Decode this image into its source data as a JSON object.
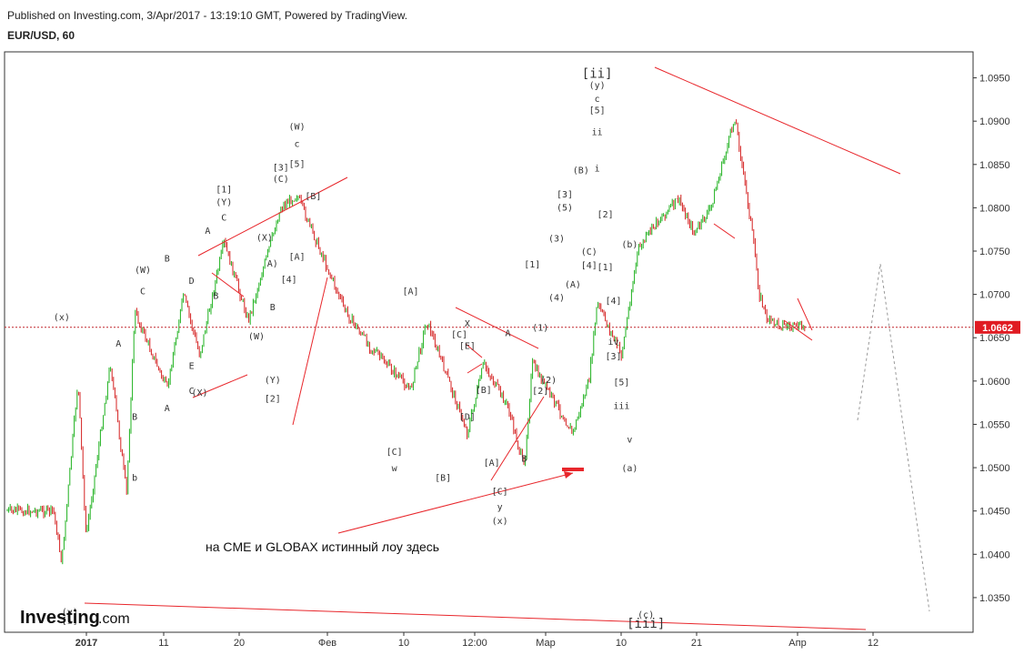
{
  "header": {
    "published": "Published on Investing.com, 3/Apr/2017 - 13:19:10 GMT, Powered by TradingView.",
    "symbol": "EUR/USD, 60"
  },
  "logo": {
    "main": "Investing",
    "suffix": ".com"
  },
  "colors": {
    "up": "#1db11d",
    "down": "#d42020",
    "line": "#e8262b",
    "price_badge": "#e01b22",
    "grid": "#cccccc"
  },
  "price": {
    "current": "1.0662",
    "current_value": 1.0662
  },
  "note": "на CME и GLOBAX истинный лоу здесь",
  "chart_data": {
    "type": "candlestick",
    "symbol": "EUR/USD",
    "timeframe": "60",
    "ylim": [
      1.031,
      1.098
    ],
    "y_ticks": [
      "1.0950",
      "1.0900",
      "1.0850",
      "1.0800",
      "1.0750",
      "1.0700",
      "1.0650",
      "1.0600",
      "1.0550",
      "1.0500",
      "1.0450",
      "1.0400",
      "1.0350"
    ],
    "x_ticks": [
      "2017",
      "11",
      "20",
      "Фев",
      "10",
      "12:00",
      "Мар",
      "10",
      "21",
      "Апр",
      "12"
    ],
    "price_path": [
      [
        "2017-01-02",
        1.045
      ],
      [
        "2017-01-03",
        1.039
      ],
      [
        "2017-01-05",
        1.06
      ],
      [
        "2017-01-06",
        1.042
      ],
      [
        "2017-01-09",
        1.062
      ],
      [
        "2017-01-11",
        1.047
      ],
      [
        "2017-01-12",
        1.068
      ],
      [
        "2017-01-16",
        1.059
      ],
      [
        "2017-01-18",
        1.07
      ],
      [
        "2017-01-20",
        1.063
      ],
      [
        "2017-01-23",
        1.076
      ],
      [
        "2017-01-26",
        1.067
      ],
      [
        "2017-01-30",
        1.08
      ],
      [
        "2017-02-01",
        1.0815
      ],
      [
        "2017-02-07",
        1.068
      ],
      [
        "2017-02-10",
        1.064
      ],
      [
        "2017-02-15",
        1.059
      ],
      [
        "2017-02-17",
        1.067
      ],
      [
        "2017-02-22",
        1.054
      ],
      [
        "2017-02-24",
        1.062
      ],
      [
        "2017-02-27",
        1.057
      ],
      [
        "2017-03-01",
        1.05
      ],
      [
        "2017-03-02",
        1.062
      ],
      [
        "2017-03-07",
        1.054
      ],
      [
        "2017-03-09",
        1.06
      ],
      [
        "2017-03-10",
        1.069
      ],
      [
        "2017-03-13",
        1.063
      ],
      [
        "2017-03-15",
        1.075
      ],
      [
        "2017-03-17",
        1.078
      ],
      [
        "2017-03-20",
        1.081
      ],
      [
        "2017-03-22",
        1.077
      ],
      [
        "2017-03-24",
        1.08
      ],
      [
        "2017-03-27",
        1.0905
      ],
      [
        "2017-03-28",
        1.084
      ],
      [
        "2017-03-29",
        1.078
      ],
      [
        "2017-03-30",
        1.07
      ],
      [
        "2017-03-31",
        1.067
      ],
      [
        "2017-04-03",
        1.0662
      ]
    ],
    "wave_labels": [
      {
        "t": "(x)",
        "d": "2017-01-03",
        "p": 1.067
      },
      {
        "t": "b",
        "d": "2017-01-12",
        "p": 1.0485
      },
      {
        "t": "A",
        "d": "2017-01-10",
        "p": 1.064
      },
      {
        "t": "B",
        "d": "2017-01-12",
        "p": 1.0555
      },
      {
        "t": "(W)",
        "d": "2017-01-13",
        "p": 1.0725
      },
      {
        "t": "C",
        "d": "2017-01-13",
        "p": 1.07
      },
      {
        "t": "A",
        "d": "2017-01-16",
        "p": 1.0565
      },
      {
        "t": "B",
        "d": "2017-01-16",
        "p": 1.0738
      },
      {
        "t": "C",
        "d": "2017-01-19",
        "p": 1.0585
      },
      {
        "t": "D",
        "d": "2017-01-19",
        "p": 1.0712
      },
      {
        "t": "E",
        "d": "2017-01-19",
        "p": 1.0614
      },
      {
        "t": "(X)",
        "d": "2017-01-20",
        "p": 1.0583
      },
      {
        "t": "A",
        "d": "2017-01-21",
        "p": 1.077
      },
      {
        "t": "B",
        "d": "2017-01-22",
        "p": 1.0695
      },
      {
        "t": "C",
        "d": "2017-01-23",
        "p": 1.0785
      },
      {
        "t": "(Y)",
        "d": "2017-01-23",
        "p": 1.0803
      },
      {
        "t": "[1]",
        "d": "2017-01-23",
        "p": 1.0818
      },
      {
        "t": "(W)",
        "d": "2017-01-27",
        "p": 1.0648
      },
      {
        "t": "(X)",
        "d": "2017-01-28",
        "p": 1.0762
      },
      {
        "t": "A)",
        "d": "2017-01-29",
        "p": 1.0732
      },
      {
        "t": "B",
        "d": "2017-01-29",
        "p": 1.0682
      },
      {
        "t": "(Y)",
        "d": "2017-01-29",
        "p": 1.0598
      },
      {
        "t": "[2]",
        "d": "2017-01-29",
        "p": 1.0576
      },
      {
        "t": "[3]",
        "d": "2017-01-30",
        "p": 1.0843
      },
      {
        "t": "(C)",
        "d": "2017-01-30",
        "p": 1.083
      },
      {
        "t": "(W)",
        "d": "2017-02-01",
        "p": 1.089
      },
      {
        "t": "c",
        "d": "2017-02-01",
        "p": 1.087
      },
      {
        "t": "[5]",
        "d": "2017-02-01",
        "p": 1.0847
      },
      {
        "t": "[A]",
        "d": "2017-02-01",
        "p": 1.074
      },
      {
        "t": "[4]",
        "d": "2017-01-31",
        "p": 1.0714
      },
      {
        "t": "[B]",
        "d": "2017-02-03",
        "p": 1.081
      },
      {
        "t": "[A]",
        "d": "2017-02-15",
        "p": 1.07
      },
      {
        "t": "[C]",
        "d": "2017-02-13",
        "p": 1.0515
      },
      {
        "t": "w",
        "d": "2017-02-13",
        "p": 1.0496
      },
      {
        "t": "[C]",
        "d": "2017-02-21",
        "p": 1.065
      },
      {
        "t": "X",
        "d": "2017-02-22",
        "p": 1.0663
      },
      {
        "t": "[E]",
        "d": "2017-02-22",
        "p": 1.0637
      },
      {
        "t": "[B]",
        "d": "2017-02-24",
        "p": 1.0586
      },
      {
        "t": "[D]",
        "d": "2017-02-22",
        "p": 1.0555
      },
      {
        "t": "[B]",
        "d": "2017-02-19",
        "p": 1.0485
      },
      {
        "t": "[A]",
        "d": "2017-02-25",
        "p": 1.0502
      },
      {
        "t": "[C]",
        "d": "2017-02-26",
        "p": 1.0469
      },
      {
        "t": "y",
        "d": "2017-02-26",
        "p": 1.0451
      },
      {
        "t": "(x)",
        "d": "2017-02-26",
        "p": 1.0435
      },
      {
        "t": "A",
        "d": "2017-02-27",
        "p": 1.0652
      },
      {
        "t": "B",
        "d": "2017-03-01",
        "p": 1.0507
      },
      {
        "t": "[1]",
        "d": "2017-03-02",
        "p": 1.0731
      },
      {
        "t": "(1)",
        "d": "2017-03-03",
        "p": 1.0658
      },
      {
        "t": "(2)",
        "d": "2017-03-04",
        "p": 1.0598
      },
      {
        "t": "[2]",
        "d": "2017-03-03",
        "p": 1.0585
      },
      {
        "t": "(3)",
        "d": "2017-03-05",
        "p": 1.0761
      },
      {
        "t": "(4)",
        "d": "2017-03-05",
        "p": 1.0693
      },
      {
        "t": "[3]",
        "d": "2017-03-06",
        "p": 1.0812
      },
      {
        "t": "(5)",
        "d": "2017-03-06",
        "p": 1.0797
      },
      {
        "t": "(A)",
        "d": "2017-03-07",
        "p": 1.0708
      },
      {
        "t": "(B)",
        "d": "2017-03-08",
        "p": 1.084
      },
      {
        "t": "(C)",
        "d": "2017-03-09",
        "p": 1.0746
      },
      {
        "t": "[4]",
        "d": "2017-03-09",
        "p": 1.073
      },
      {
        "t": "[ii]",
        "d": "2017-03-10",
        "p": 1.095
      },
      {
        "t": "(y)",
        "d": "2017-03-10",
        "p": 1.0938
      },
      {
        "t": "c",
        "d": "2017-03-10",
        "p": 1.0922
      },
      {
        "t": "[5]",
        "d": "2017-03-10",
        "p": 1.0909
      },
      {
        "t": "ii",
        "d": "2017-03-10",
        "p": 1.0884
      },
      {
        "t": "i",
        "d": "2017-03-10",
        "p": 1.0842
      },
      {
        "t": "[2]",
        "d": "2017-03-11",
        "p": 1.0789
      },
      {
        "t": "[1]",
        "d": "2017-03-11",
        "p": 1.0728
      },
      {
        "t": "[4]",
        "d": "2017-03-12",
        "p": 1.0689
      },
      {
        "t": "iv",
        "d": "2017-03-12",
        "p": 1.0642
      },
      {
        "t": "[3]",
        "d": "2017-03-12",
        "p": 1.0625
      },
      {
        "t": "[5]",
        "d": "2017-03-13",
        "p": 1.0595
      },
      {
        "t": "iii",
        "d": "2017-03-13",
        "p": 1.0568
      },
      {
        "t": "v",
        "d": "2017-03-14",
        "p": 1.0529
      },
      {
        "t": "(a)",
        "d": "2017-03-14",
        "p": 1.0496
      },
      {
        "t": "(b)",
        "d": "2017-03-14",
        "p": 1.0754
      },
      {
        "t": "(c)",
        "d": "2017-03-16",
        "p": 1.0327
      },
      {
        "t": "[iii]",
        "d": "2017-03-16",
        "p": 1.0315
      },
      {
        "t": "[i]",
        "d": "2017-01-04",
        "p": 1.032
      },
      {
        "t": "(y)",
        "d": "2017-01-04",
        "p": 1.033
      }
    ]
  }
}
